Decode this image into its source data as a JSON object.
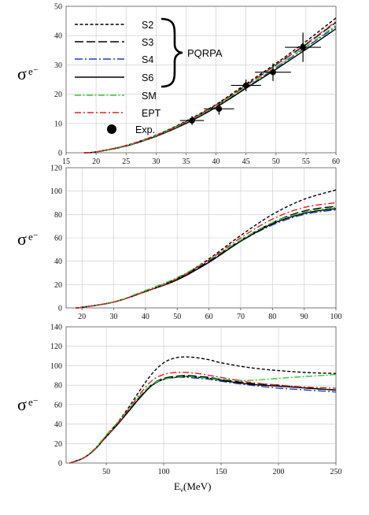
{
  "chart_data": [
    {
      "type": "line",
      "panel": "top",
      "ylabel": "σ",
      "ylabel_sub": "e⁻",
      "xlim": [
        15,
        60
      ],
      "ylim": [
        0,
        50
      ],
      "xticks": [
        15,
        20,
        25,
        30,
        35,
        40,
        45,
        50,
        55,
        60
      ],
      "yticks": [
        0,
        10,
        20,
        30,
        40,
        50
      ],
      "legend": {
        "placement": "top-left",
        "entries": [
          "S2",
          "S3",
          "S4",
          "S6",
          "SM",
          "EPT",
          "Exp."
        ],
        "group_label": "PQRPA"
      },
      "x": [
        18,
        20,
        25,
        30,
        35,
        40,
        45,
        50,
        55,
        60
      ],
      "series": [
        {
          "name": "S2",
          "color": "#000000",
          "dash": "4,2.5",
          "values": [
            0.0,
            0.3,
            2.5,
            6.0,
            10.8,
            16.5,
            23.5,
            30.5,
            38.0,
            46.0
          ]
        },
        {
          "name": "S3",
          "color": "#000000",
          "dash": "11,4",
          "values": [
            0.0,
            0.3,
            2.4,
            5.9,
            10.5,
            16.2,
            23.0,
            30.0,
            37.0,
            44.5
          ]
        },
        {
          "name": "S4",
          "color": "#1f3fbf",
          "dash": "10,3,2,3",
          "values": [
            0.0,
            0.3,
            2.3,
            5.7,
            10.2,
            15.8,
            22.3,
            29.0,
            36.0,
            43.0
          ]
        },
        {
          "name": "S6",
          "color": "#000000",
          "dash": "",
          "values": [
            0.0,
            0.3,
            2.3,
            5.6,
            10.0,
            15.5,
            22.0,
            28.5,
            35.3,
            42.3
          ]
        },
        {
          "name": "SM",
          "color": "#33cc33",
          "dash": "8,2.5,2,2.5",
          "values": [
            0.0,
            0.3,
            2.4,
            5.8,
            10.4,
            16.0,
            22.5,
            29.3,
            36.3,
            43.5
          ]
        },
        {
          "name": "EPT",
          "color": "#dd2222",
          "dash": "8,3,2,3",
          "values": [
            0.0,
            0.3,
            2.5,
            5.9,
            10.6,
            16.3,
            23.0,
            30.0,
            37.2,
            44.8
          ]
        }
      ],
      "experiment": {
        "name": "Exp.",
        "x": [
          36,
          40.5,
          45,
          49.5,
          54.5
        ],
        "y": [
          11,
          15,
          23,
          27.5,
          36
        ],
        "xerr": [
          2,
          2.5,
          2.5,
          3,
          3
        ],
        "yerr": [
          1.5,
          2,
          2,
          3,
          5
        ]
      }
    },
    {
      "type": "line",
      "panel": "middle",
      "ylabel": "σ",
      "ylabel_sub": "e⁻",
      "xlim": [
        15,
        100
      ],
      "ylim": [
        0,
        120
      ],
      "xticks": [
        20,
        30,
        40,
        50,
        60,
        70,
        80,
        90,
        100
      ],
      "yticks": [
        0,
        20,
        40,
        60,
        80,
        100,
        120
      ],
      "x": [
        18,
        20,
        30,
        40,
        50,
        60,
        70,
        80,
        90,
        100
      ],
      "series": [
        {
          "name": "S2",
          "color": "#000000",
          "dash": "4,2.5",
          "values": [
            0,
            0.5,
            5,
            14,
            25,
            42,
            62,
            80,
            93,
            101
          ]
        },
        {
          "name": "S3",
          "color": "#000000",
          "dash": "11,4",
          "values": [
            0,
            0.5,
            5,
            14,
            25,
            40,
            58,
            73,
            83,
            87
          ]
        },
        {
          "name": "S4",
          "color": "#1f3fbf",
          "dash": "10,3,2,3",
          "values": [
            0,
            0.5,
            5,
            14,
            24,
            39,
            57,
            71,
            80,
            84
          ]
        },
        {
          "name": "S6",
          "color": "#000000",
          "dash": "",
          "values": [
            0,
            0.5,
            5,
            14,
            24,
            39,
            57,
            72,
            81,
            85
          ]
        },
        {
          "name": "SM",
          "color": "#33cc33",
          "dash": "8,2.5,2,2.5",
          "values": [
            0,
            0.5,
            5,
            15,
            26,
            41,
            58,
            73,
            82,
            86
          ]
        },
        {
          "name": "EPT",
          "color": "#dd2222",
          "dash": "8,3,2,3",
          "values": [
            0,
            0.5,
            5,
            14,
            25,
            41,
            60,
            76,
            86,
            90
          ]
        }
      ]
    },
    {
      "type": "line",
      "panel": "bottom",
      "ylabel": "σ",
      "ylabel_sub": "e⁻",
      "xlabel": "E",
      "xlabel_sub": "ν",
      "xlabel_unit": "(MeV)",
      "xlim": [
        15,
        250
      ],
      "ylim": [
        0,
        140
      ],
      "xticks": [
        50,
        100,
        150,
        200,
        250
      ],
      "yticks": [
        0,
        20,
        40,
        60,
        80,
        100,
        120,
        140
      ],
      "x": [
        18,
        30,
        40,
        50,
        60,
        70,
        80,
        90,
        100,
        110,
        120,
        130,
        140,
        150,
        175,
        200,
        225,
        250
      ],
      "series": [
        {
          "name": "S2",
          "color": "#000000",
          "dash": "4,2.5",
          "values": [
            0,
            5,
            14,
            28,
            42,
            58,
            76,
            92,
            103,
            108,
            109,
            108,
            106,
            103,
            98,
            95,
            93,
            92
          ]
        },
        {
          "name": "S3",
          "color": "#000000",
          "dash": "11,4",
          "values": [
            0,
            5,
            14,
            27,
            40,
            54,
            69,
            81,
            87,
            89,
            90,
            89,
            88,
            86,
            82,
            80,
            77,
            75
          ]
        },
        {
          "name": "S4",
          "color": "#1f3fbf",
          "dash": "10,3,2,3",
          "values": [
            0,
            5,
            14,
            27,
            40,
            54,
            68,
            80,
            86,
            88,
            88,
            87,
            86,
            84,
            80,
            77,
            75,
            73
          ]
        },
        {
          "name": "S6",
          "color": "#000000",
          "dash": "",
          "values": [
            0,
            5,
            14,
            27,
            40,
            54,
            68,
            80,
            86,
            88,
            89,
            88,
            87,
            85,
            81,
            79,
            77,
            75
          ]
        },
        {
          "name": "SM",
          "color": "#33cc33",
          "dash": "8,2.5,2,2.5",
          "values": [
            0,
            5,
            15,
            29,
            42,
            56,
            70,
            81,
            86,
            88,
            89,
            88,
            87,
            86,
            85,
            87,
            89,
            91
          ]
        },
        {
          "name": "EPT",
          "color": "#dd2222",
          "dash": "8,3,2,3",
          "values": [
            0,
            5,
            14,
            27,
            41,
            56,
            72,
            85,
            91,
            93,
            93,
            92,
            90,
            88,
            83,
            80,
            78,
            77
          ]
        }
      ]
    }
  ]
}
